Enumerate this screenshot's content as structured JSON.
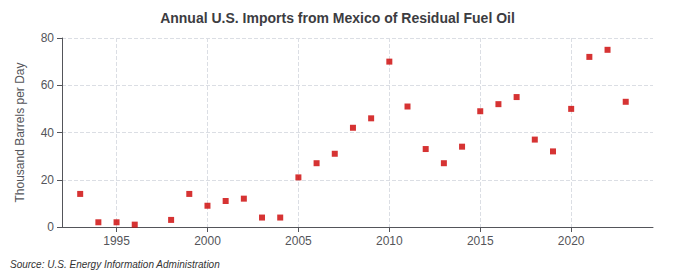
{
  "chart_data": {
    "type": "scatter",
    "title": "Annual U.S. Imports from Mexico of Residual Fuel Oil",
    "ylabel": "Thousand Barrels per Day",
    "source": "Source: U.S. Energy Information Administration",
    "x": [
      1993,
      1994,
      1995,
      1996,
      1998,
      1999,
      2000,
      2001,
      2002,
      2003,
      2004,
      2005,
      2006,
      2007,
      2008,
      2009,
      2010,
      2011,
      2012,
      2013,
      2014,
      2015,
      2016,
      2017,
      2018,
      2019,
      2020,
      2021,
      2022,
      2023
    ],
    "values": [
      14,
      2,
      2,
      1,
      3,
      14,
      9,
      11,
      12,
      4,
      4,
      21,
      27,
      31,
      42,
      46,
      70,
      51,
      33,
      27,
      34,
      49,
      52,
      55,
      37,
      32,
      50,
      72,
      75,
      53
    ],
    "color": "#cc0000",
    "marker": "square",
    "xlim": [
      1992,
      2024.5
    ],
    "xticks": [
      1995,
      2000,
      2005,
      2010,
      2015,
      2020
    ],
    "ylim": [
      0,
      80
    ],
    "yticks": [
      0,
      20,
      40,
      60,
      80
    ],
    "grid": true
  }
}
